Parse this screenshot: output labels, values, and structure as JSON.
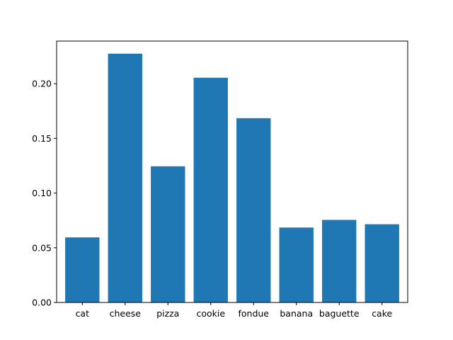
{
  "chart_data": {
    "type": "bar",
    "title": "",
    "xlabel": "",
    "ylabel": "",
    "categories": [
      "cat",
      "cheese",
      "pizza",
      "cookie",
      "fondue",
      "banana",
      "baguette",
      "cake"
    ],
    "values": [
      0.0595,
      0.2275,
      0.1245,
      0.2055,
      0.1685,
      0.0685,
      0.0755,
      0.0715
    ],
    "ylim": [
      0,
      0.239
    ],
    "yticks": [
      0.0,
      0.05,
      0.1,
      0.15,
      0.2
    ],
    "ytick_labels": [
      "0.00",
      "0.05",
      "0.10",
      "0.15",
      "0.20"
    ],
    "grid": false,
    "bar_color": "#1f77b4"
  }
}
